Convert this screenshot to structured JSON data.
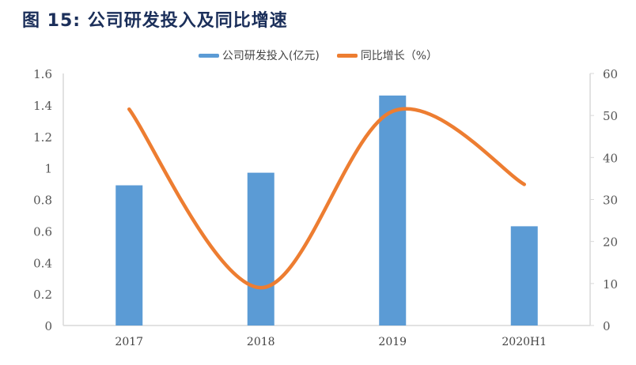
{
  "title": "图  15:  公司研发投入及同比增速",
  "chart_data": {
    "type": "bar+line",
    "categories": [
      "2017",
      "2018",
      "2019",
      "2020H1"
    ],
    "series": [
      {
        "name": "公司研发投入(亿元)",
        "type": "bar",
        "axis": "left",
        "color": "#5b9bd5",
        "values": [
          0.89,
          0.97,
          1.46,
          0.63
        ]
      },
      {
        "name": "同比增长（%）",
        "type": "line",
        "smooth": true,
        "axis": "right",
        "color": "#ed7d31",
        "values": [
          51.5,
          9,
          51,
          33.6
        ]
      }
    ],
    "y_left": {
      "ylim": [
        0,
        1.6
      ],
      "ticks": [
        "0",
        "0.2",
        "0.4",
        "0.6",
        "0.8",
        "1",
        "1.2",
        "1.4",
        "1.6"
      ]
    },
    "y_right": {
      "ylim": [
        0,
        60
      ],
      "ticks": [
        "0",
        "10",
        "20",
        "30",
        "40",
        "50",
        "60"
      ]
    },
    "legend": "top",
    "grid": false
  }
}
